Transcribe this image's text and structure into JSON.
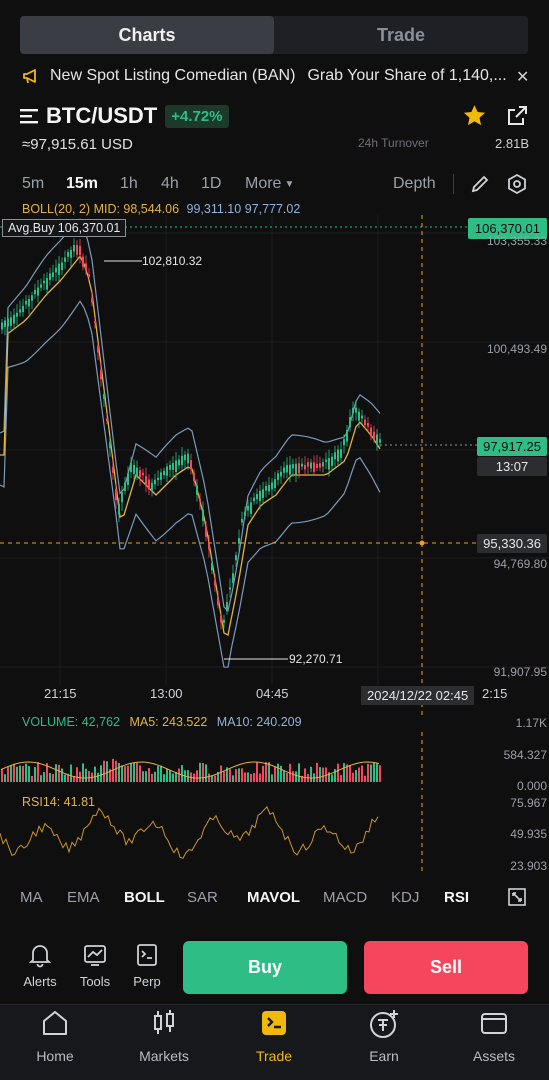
{
  "tabs": {
    "charts": "Charts",
    "trade": "Trade"
  },
  "notice": {
    "item1": "New Spot Listing Comedian (BAN)",
    "item2": "Grab Your Share of 1,140,..."
  },
  "pair": {
    "name": "BTC/USDT",
    "change": "+4.72%",
    "usd_price": "≈97,915.61 USD",
    "turnover_label": "24h Turnover",
    "turnover_value": "2.81B"
  },
  "timeframes": {
    "m5": "5m",
    "m15": "15m",
    "h1": "1h",
    "h4": "4h",
    "d1": "1D",
    "more": "More",
    "depth": "Depth"
  },
  "indicators": {
    "boll": "BOLL(20, 2) MID: 98,544.06",
    "boll_up": "99,311.10",
    "boll_dn": "97,777.02",
    "avg_buy": "Avg.Buy 106,370.01",
    "avg_buy_price": "106,370.01",
    "high_mark": "102,810.32",
    "low_mark": "92,270.71"
  },
  "axis": {
    "y1": "103,355.33",
    "y2": "100,493.49",
    "y3": "94,769.80",
    "y4": "91,907.95",
    "current_price": "97,917.25",
    "countdown": "13:07",
    "crosshair_price": "95,330.36",
    "x1": "21:15",
    "x2": "13:00",
    "x3": "04:45",
    "x4": "2:15",
    "crosshair_time": "2024/12/22 02:45"
  },
  "volume": {
    "label": "VOLUME: 42,762",
    "ma5": "MA5: 243.522",
    "ma10": "MA10: 240.209",
    "y1": "1.17K",
    "y2": "584.327",
    "y3": "0.000"
  },
  "rsi": {
    "label": "RSI14: 41.81",
    "y1": "75.967",
    "y2": "49.935",
    "y3": "23.903"
  },
  "indicator_tabs": [
    "MA",
    "EMA",
    "BOLL",
    "SAR",
    "MAVOL",
    "MACD",
    "KDJ",
    "RSI"
  ],
  "actions": {
    "alerts": "Alerts",
    "tools": "Tools",
    "perp": "Perp",
    "buy": "Buy",
    "sell": "Sell"
  },
  "nav": {
    "home": "Home",
    "markets": "Markets",
    "trade": "Trade",
    "earn": "Earn",
    "assets": "Assets"
  },
  "colors": {
    "up": "#2ebd85",
    "down": "#f6465d",
    "accent": "#f0b90b",
    "boll": "#8fb3d9",
    "mid": "#e3b341"
  }
}
